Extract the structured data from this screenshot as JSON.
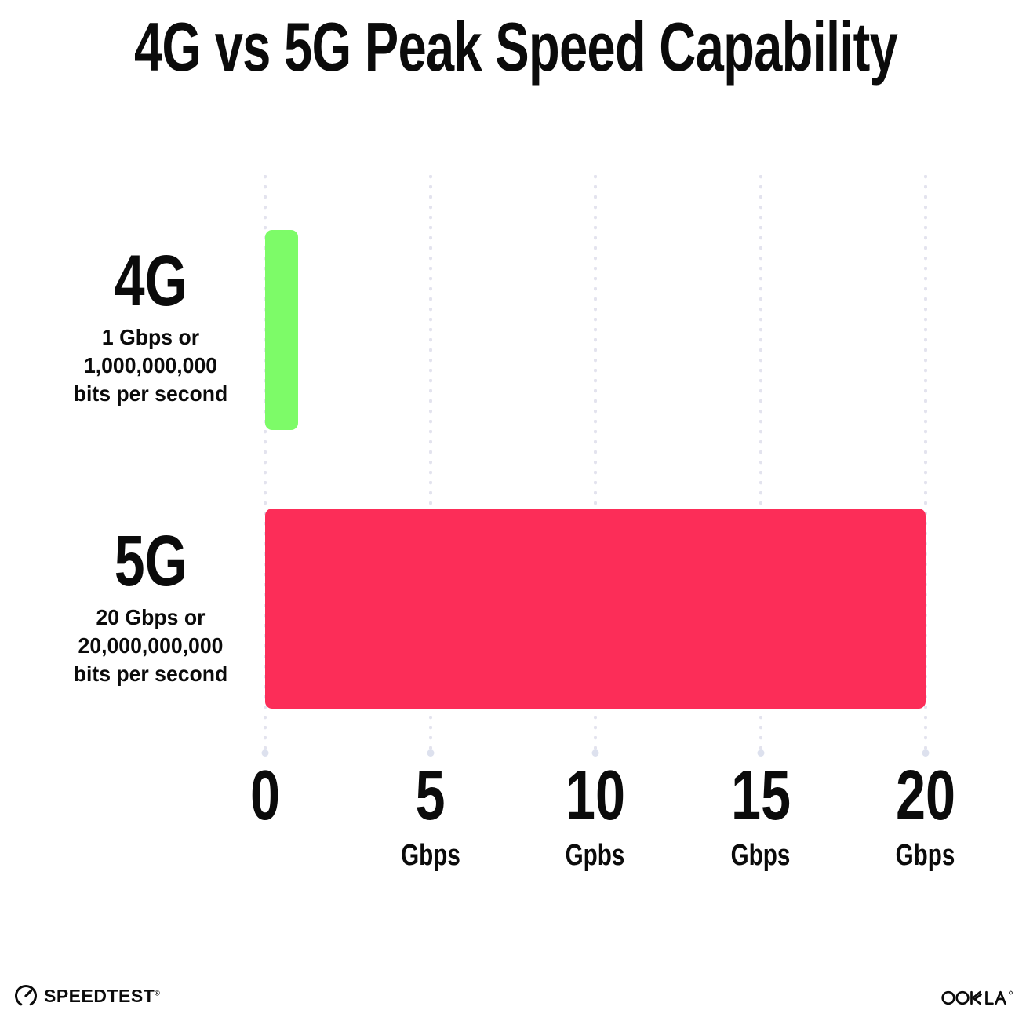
{
  "chart_data": {
    "type": "bar",
    "orientation": "horizontal",
    "title": "4G vs 5G Peak Speed Capability",
    "categories": [
      "4G",
      "5G"
    ],
    "values": [
      1,
      20
    ],
    "xlim": [
      0,
      20
    ],
    "grid": "vertical-dotted",
    "legend": "none",
    "x_ticks": [
      {
        "value": 0,
        "label": "0",
        "unit": ""
      },
      {
        "value": 5,
        "label": "5",
        "unit": "Gbps"
      },
      {
        "value": 10,
        "label": "10",
        "unit": "Gpbs"
      },
      {
        "value": 15,
        "label": "15",
        "unit": "Gbps"
      },
      {
        "value": 20,
        "label": "20",
        "unit": "Gbps"
      }
    ],
    "bars": [
      {
        "label": "4G",
        "sublabel_lines": [
          "1 Gbps or",
          "1,000,000,000",
          "bits per second"
        ],
        "value_gbps": 1,
        "color": "#7DFB68"
      },
      {
        "label": "5G",
        "sublabel_lines": [
          "20 Gbps or",
          "20,000,000,000",
          "bits per second"
        ],
        "value_gbps": 20,
        "color": "#FC2D58"
      }
    ],
    "colors": {
      "bar_4g": "#7DFB68",
      "bar_5g": "#FC2D58",
      "grid": "#e3e3ee",
      "text": "#0b0b0b"
    }
  },
  "footer": {
    "speedtest_label": "SPEEDTEST",
    "speedtest_trademark": "®",
    "ookla_label": "OOKLA"
  }
}
